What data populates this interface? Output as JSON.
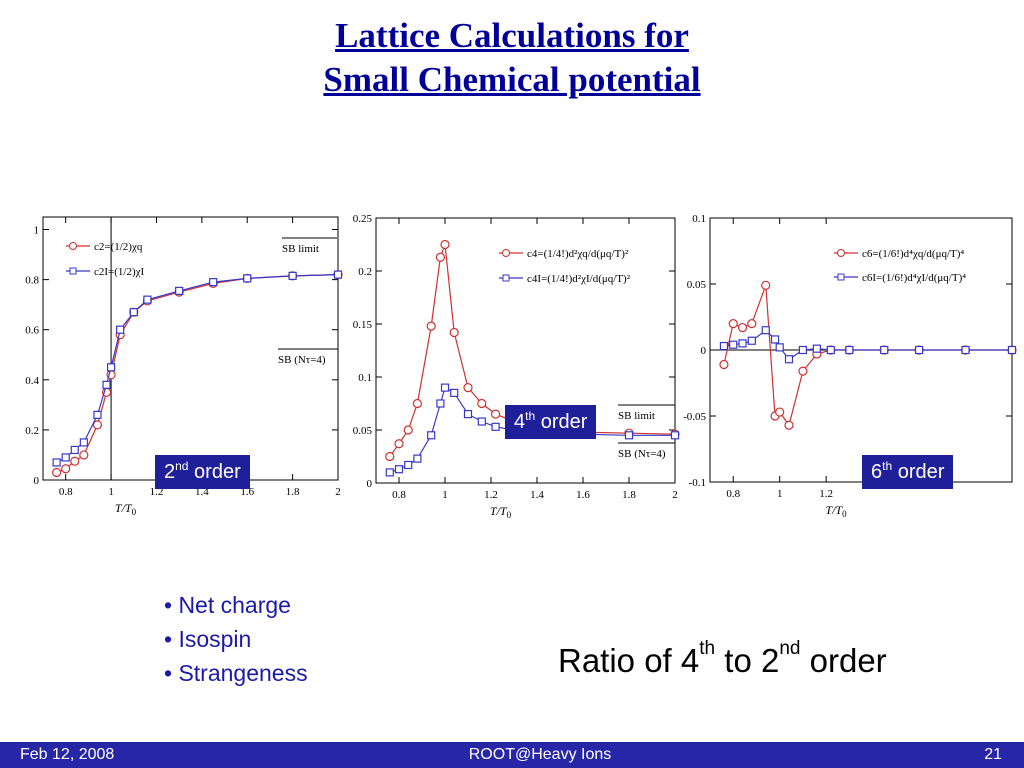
{
  "slide": {
    "title_line1": "Lattice Calculations for",
    "title_line2": "Small Chemical potential",
    "label_2nd": {
      "number": "2",
      "sup": "nd",
      "word": "order"
    },
    "label_4th": {
      "number": "4",
      "sup": "th",
      "word": "order"
    },
    "label_6th": {
      "number": "6",
      "sup": "th",
      "word": "order"
    },
    "bullets": [
      "• Net charge",
      "• Isospin",
      "• Strangeness"
    ],
    "ratio": {
      "p1": "Ratio of 4",
      "s1": "th",
      "p2": " to 2",
      "s2": "nd",
      "p3": " order"
    }
  },
  "footer": {
    "date": "Feb 12, 2008",
    "center": "ROOT@Heavy Ions",
    "page": "21"
  },
  "colors": {
    "title": "#000099",
    "red": "#d03030",
    "blue": "#3838c8",
    "box": "#1f1f99",
    "footer": "#2626a6"
  },
  "chart_data": [
    {
      "type": "line",
      "xlabel": "T/T0",
      "xlim": [
        0.7,
        2.0
      ],
      "ylim": [
        0,
        1.05
      ],
      "xticks": [
        "0.8",
        "1",
        "1.2",
        "1.4",
        "1.6",
        "1.8",
        "2"
      ],
      "yticks": [
        "0",
        "0.2",
        "0.4",
        "0.6",
        "0.8",
        "1"
      ],
      "annotations": [
        "SB limit",
        "SB (Nτ=4)"
      ],
      "grid": false,
      "series": [
        {
          "name": "c2=(1/2)χq",
          "color": "red",
          "x": [
            0.76,
            0.8,
            0.84,
            0.88,
            0.94,
            0.98,
            1.0,
            1.04,
            1.1,
            1.16,
            1.3,
            1.45,
            1.6,
            1.8,
            2.0
          ],
          "y": [
            0.03,
            0.045,
            0.075,
            0.1,
            0.22,
            0.35,
            0.42,
            0.58,
            0.67,
            0.715,
            0.75,
            0.785,
            0.805,
            0.815,
            0.82
          ]
        },
        {
          "name": "c2I=(1/2)χI",
          "color": "blue",
          "x": [
            0.76,
            0.8,
            0.84,
            0.88,
            0.94,
            0.98,
            1.0,
            1.04,
            1.1,
            1.16,
            1.3,
            1.45,
            1.6,
            1.8,
            2.0
          ],
          "y": [
            0.07,
            0.09,
            0.12,
            0.15,
            0.26,
            0.38,
            0.45,
            0.6,
            0.67,
            0.72,
            0.755,
            0.79,
            0.805,
            0.815,
            0.82
          ]
        }
      ]
    },
    {
      "type": "line",
      "xlabel": "T/T0",
      "xlim": [
        0.7,
        2.0
      ],
      "ylim": [
        0,
        0.25
      ],
      "xticks": [
        "0.8",
        "1",
        "1.2",
        "1.4",
        "1.6",
        "1.8",
        "2"
      ],
      "yticks": [
        "0",
        "0.05",
        "0.1",
        "0.15",
        "0.2",
        "0.25"
      ],
      "annotations": [
        "SB limit",
        "SB (Nτ=4)"
      ],
      "grid": false,
      "series": [
        {
          "name": "c4=(1/4!)d²χq/d(μq/T)²",
          "color": "red",
          "x": [
            0.76,
            0.8,
            0.84,
            0.88,
            0.94,
            0.98,
            1.0,
            1.04,
            1.1,
            1.16,
            1.22,
            1.3,
            1.4,
            1.5,
            1.6,
            1.8,
            2.0
          ],
          "y": [
            0.025,
            0.037,
            0.05,
            0.075,
            0.148,
            0.213,
            0.225,
            0.142,
            0.09,
            0.075,
            0.065,
            0.058,
            0.053,
            0.05,
            0.048,
            0.047,
            0.046
          ]
        },
        {
          "name": "c4I=(1/4!)d²χI/d(μq/T)²",
          "color": "blue",
          "x": [
            0.76,
            0.8,
            0.84,
            0.88,
            0.94,
            0.98,
            1.0,
            1.04,
            1.1,
            1.16,
            1.22,
            1.3,
            1.4,
            1.5,
            1.6,
            1.8,
            2.0
          ],
          "y": [
            0.01,
            0.013,
            0.017,
            0.023,
            0.045,
            0.075,
            0.09,
            0.085,
            0.065,
            0.058,
            0.053,
            0.05,
            0.048,
            0.047,
            0.046,
            0.045,
            0.045
          ]
        }
      ]
    },
    {
      "type": "line",
      "xlabel": "T/T0",
      "xlim": [
        0.7,
        2.0
      ],
      "ylim": [
        -0.1,
        0.1
      ],
      "xticks": [
        "0.8",
        "1",
        "1.2"
      ],
      "yticks": [
        "-0.1",
        "-0.05",
        "0",
        "0.05",
        "0.1"
      ],
      "grid": false,
      "series": [
        {
          "name": "c6=(1/6!)d⁴χq/d(μq/T)⁴",
          "color": "red",
          "x": [
            0.76,
            0.8,
            0.84,
            0.88,
            0.94,
            0.98,
            1.0,
            1.04,
            1.1,
            1.16,
            1.22,
            1.3,
            1.45,
            1.6,
            1.8,
            2.0
          ],
          "y": [
            -0.011,
            0.02,
            0.017,
            0.02,
            0.049,
            -0.05,
            -0.047,
            -0.057,
            -0.016,
            -0.003,
            0.0,
            0.0,
            0.0,
            0.0,
            0.0,
            0.0
          ]
        },
        {
          "name": "c6I=(1/6!)d⁴χI/d(μq/T)⁴",
          "color": "blue",
          "x": [
            0.76,
            0.8,
            0.84,
            0.88,
            0.94,
            0.98,
            1.0,
            1.04,
            1.1,
            1.16,
            1.22,
            1.3,
            1.45,
            1.6,
            1.8,
            2.0
          ],
          "y": [
            0.003,
            0.004,
            0.005,
            0.007,
            0.015,
            0.008,
            0.002,
            -0.007,
            0.0,
            0.001,
            0.0,
            0.0,
            0.0,
            0.0,
            0.0,
            0.0
          ]
        }
      ]
    }
  ]
}
